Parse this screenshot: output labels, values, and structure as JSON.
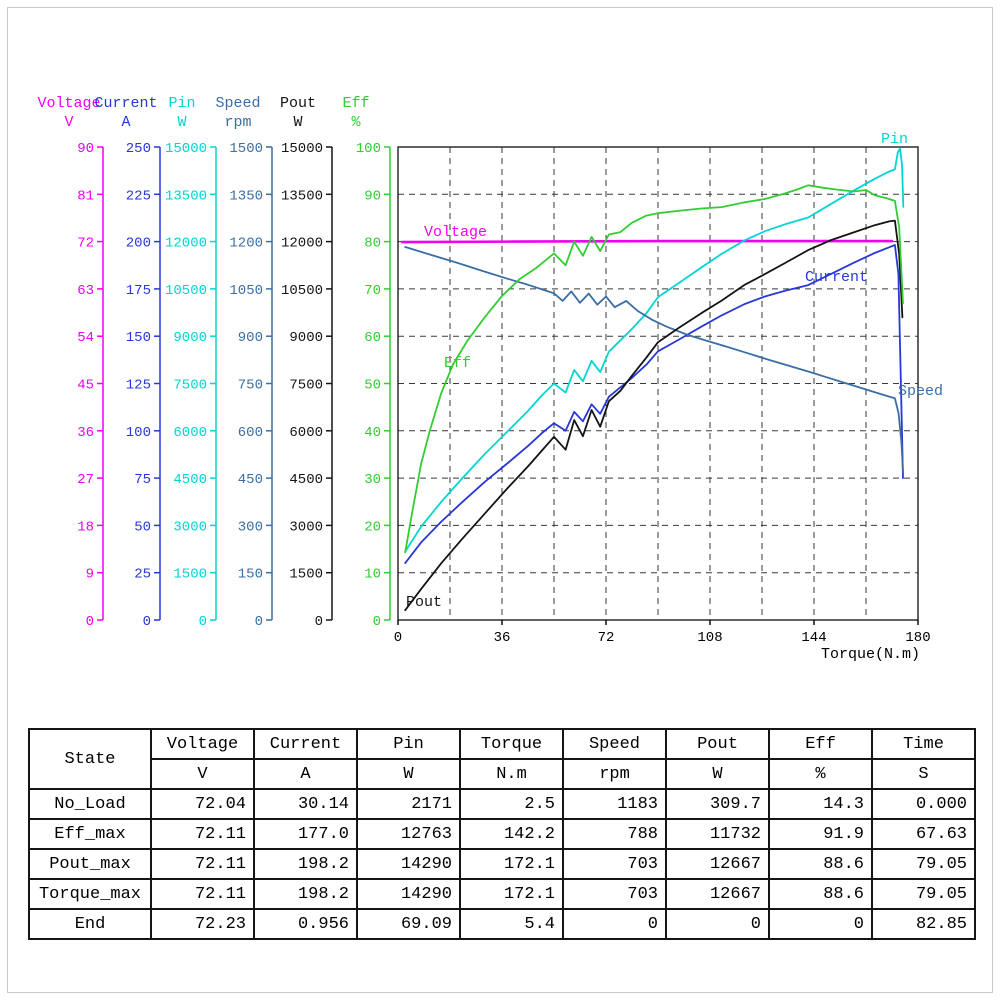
{
  "chart_data": {
    "type": "line",
    "x_axis": {
      "label": "Torque(N.m)",
      "min": 0,
      "max": 180,
      "divisions": 10,
      "ticks": [
        "0",
        "36",
        "72",
        "108",
        "144",
        "180"
      ]
    },
    "axes": [
      {
        "id": "voltage",
        "name": "Voltage",
        "unit": "V",
        "max": 90,
        "color": "#f000f0",
        "ticks": [
          "0",
          "9",
          "18",
          "27",
          "36",
          "45",
          "54",
          "63",
          "72",
          "81",
          "90"
        ]
      },
      {
        "id": "current",
        "name": "Current",
        "unit": "A",
        "max": 250,
        "color": "#2838d8",
        "ticks": [
          "0",
          "25",
          "50",
          "75",
          "100",
          "125",
          "150",
          "175",
          "200",
          "225",
          "250"
        ]
      },
      {
        "id": "pin",
        "name": "Pin",
        "unit": "W",
        "max": 15000,
        "color": "#00d5d5",
        "ticks": [
          "0",
          "1500",
          "3000",
          "4500",
          "6000",
          "7500",
          "9000",
          "10500",
          "12000",
          "13500",
          "15000"
        ]
      },
      {
        "id": "speed",
        "name": "Speed",
        "unit": "rpm",
        "max": 1500,
        "color": "#3b6ea5",
        "ticks": [
          "0",
          "150",
          "300",
          "450",
          "600",
          "750",
          "900",
          "1050",
          "1200",
          "1350",
          "1500"
        ]
      },
      {
        "id": "pout",
        "name": "Pout",
        "unit": "W",
        "max": 15000,
        "color": "#141414",
        "ticks": [
          "0",
          "1500",
          "3000",
          "4500",
          "6000",
          "7500",
          "9000",
          "10500",
          "12000",
          "13500",
          "15000"
        ]
      },
      {
        "id": "eff",
        "name": "Eff",
        "unit": "%",
        "max": 100,
        "color": "#33cc33",
        "ticks": [
          "0",
          "10",
          "20",
          "30",
          "40",
          "50",
          "60",
          "70",
          "80",
          "90",
          "100"
        ]
      }
    ],
    "series": [
      {
        "id": "voltage",
        "label": "Voltage",
        "axis": "voltage",
        "color": "#f000f0",
        "points": [
          [
            1.5,
            71.9
          ],
          [
            40,
            72.0
          ],
          [
            90,
            72.1
          ],
          [
            140,
            72.1
          ],
          [
            171,
            72.1
          ]
        ]
      },
      {
        "id": "pin",
        "label": "Pin",
        "axis": "pin",
        "color": "#00d5d5",
        "points": [
          [
            2.5,
            2171
          ],
          [
            8,
            2960
          ],
          [
            15,
            3750
          ],
          [
            22,
            4470
          ],
          [
            30,
            5260
          ],
          [
            38,
            5990
          ],
          [
            45,
            6630
          ],
          [
            50,
            7140
          ],
          [
            54,
            7500
          ],
          [
            58,
            7210
          ],
          [
            61,
            7930
          ],
          [
            64,
            7570
          ],
          [
            67,
            8220
          ],
          [
            70,
            7860
          ],
          [
            73,
            8510
          ],
          [
            77,
            8870
          ],
          [
            81,
            9230
          ],
          [
            86,
            9730
          ],
          [
            90,
            10240
          ],
          [
            97,
            10670
          ],
          [
            105,
            11180
          ],
          [
            112,
            11610
          ],
          [
            120,
            12040
          ],
          [
            127,
            12330
          ],
          [
            134,
            12550
          ],
          [
            142,
            12763
          ],
          [
            150,
            13200
          ],
          [
            158,
            13630
          ],
          [
            165,
            13990
          ],
          [
            170,
            14220
          ],
          [
            172,
            14290
          ],
          [
            173,
            14830
          ],
          [
            173.8,
            14950
          ],
          [
            174.5,
            14400
          ],
          [
            174.9,
            13100
          ]
        ]
      },
      {
        "id": "current",
        "label": "Current",
        "axis": "current",
        "color": "#2838d8",
        "points": [
          [
            2.5,
            30.1
          ],
          [
            8,
            41
          ],
          [
            15,
            52
          ],
          [
            22,
            62
          ],
          [
            30,
            73
          ],
          [
            38,
            83
          ],
          [
            45,
            92
          ],
          [
            50,
            99
          ],
          [
            54,
            104
          ],
          [
            58,
            100
          ],
          [
            61,
            110
          ],
          [
            64,
            105
          ],
          [
            67,
            114
          ],
          [
            70,
            109
          ],
          [
            73,
            118
          ],
          [
            77,
            123
          ],
          [
            81,
            128
          ],
          [
            86,
            135
          ],
          [
            90,
            142
          ],
          [
            97,
            148
          ],
          [
            105,
            155
          ],
          [
            112,
            161
          ],
          [
            120,
            167
          ],
          [
            127,
            171
          ],
          [
            134,
            174
          ],
          [
            142,
            177
          ],
          [
            150,
            183
          ],
          [
            158,
            189
          ],
          [
            165,
            194
          ],
          [
            170,
            197
          ],
          [
            172,
            198.2
          ],
          [
            173.2,
            183
          ],
          [
            174.2,
            118
          ],
          [
            174.8,
            75
          ]
        ]
      },
      {
        "id": "speed",
        "label": "Speed",
        "axis": "speed",
        "color": "#3b6ea5",
        "points": [
          [
            2.5,
            1183
          ],
          [
            10,
            1162
          ],
          [
            20,
            1134
          ],
          [
            30,
            1105
          ],
          [
            38,
            1082
          ],
          [
            45,
            1063
          ],
          [
            50,
            1048
          ],
          [
            54,
            1036
          ],
          [
            57,
            1012
          ],
          [
            60,
            1042
          ],
          [
            63,
            1006
          ],
          [
            66,
            1035
          ],
          [
            69,
            1000
          ],
          [
            72,
            1026
          ],
          [
            75,
            992
          ],
          [
            79,
            1012
          ],
          [
            83,
            980
          ],
          [
            88,
            952
          ],
          [
            93,
            930
          ],
          [
            100,
            905
          ],
          [
            107,
            885
          ],
          [
            114,
            866
          ],
          [
            121,
            846
          ],
          [
            128,
            826
          ],
          [
            135,
            807
          ],
          [
            142,
            788
          ],
          [
            149,
            768
          ],
          [
            156,
            748
          ],
          [
            163,
            728
          ],
          [
            168,
            714
          ],
          [
            172,
            703
          ],
          [
            173.3,
            655
          ],
          [
            174.3,
            560
          ],
          [
            174.8,
            470
          ]
        ]
      },
      {
        "id": "pout",
        "label": "Pout",
        "axis": "pout",
        "color": "#141414",
        "points": [
          [
            2.5,
            310
          ],
          [
            8,
            980
          ],
          [
            15,
            1800
          ],
          [
            22,
            2550
          ],
          [
            30,
            3370
          ],
          [
            38,
            4190
          ],
          [
            45,
            4870
          ],
          [
            50,
            5390
          ],
          [
            54,
            5810
          ],
          [
            58,
            5400
          ],
          [
            61,
            6340
          ],
          [
            64,
            5830
          ],
          [
            67,
            6660
          ],
          [
            70,
            6130
          ],
          [
            73,
            6940
          ],
          [
            77,
            7270
          ],
          [
            81,
            7750
          ],
          [
            86,
            8320
          ],
          [
            90,
            8810
          ],
          [
            97,
            9250
          ],
          [
            105,
            9730
          ],
          [
            112,
            10130
          ],
          [
            120,
            10630
          ],
          [
            127,
            10970
          ],
          [
            134,
            11320
          ],
          [
            142,
            11729
          ],
          [
            150,
            12050
          ],
          [
            158,
            12300
          ],
          [
            165,
            12520
          ],
          [
            170,
            12640
          ],
          [
            172,
            12667
          ],
          [
            173.5,
            11600
          ],
          [
            174.6,
            9600
          ]
        ]
      },
      {
        "id": "eff",
        "label": "Eff",
        "axis": "eff",
        "color": "#33cc33",
        "points": [
          [
            2.5,
            14.3
          ],
          [
            5,
            23
          ],
          [
            8,
            33
          ],
          [
            11,
            40
          ],
          [
            15,
            48
          ],
          [
            19,
            54
          ],
          [
            24,
            59
          ],
          [
            30,
            64
          ],
          [
            36,
            68.5
          ],
          [
            42,
            72
          ],
          [
            48,
            74.5
          ],
          [
            52,
            76.5
          ],
          [
            54,
            77.5
          ],
          [
            58,
            75
          ],
          [
            61,
            80
          ],
          [
            64,
            77
          ],
          [
            67,
            81
          ],
          [
            70,
            78
          ],
          [
            73,
            81.5
          ],
          [
            77,
            82
          ],
          [
            81,
            84
          ],
          [
            86,
            85.5
          ],
          [
            90,
            86
          ],
          [
            97,
            86.5
          ],
          [
            105,
            87
          ],
          [
            112,
            87.3
          ],
          [
            120,
            88.3
          ],
          [
            127,
            89
          ],
          [
            134,
            90.2
          ],
          [
            138,
            91
          ],
          [
            142,
            91.9
          ],
          [
            147,
            91.4
          ],
          [
            152,
            91
          ],
          [
            158,
            90.6
          ],
          [
            162,
            90.9
          ],
          [
            165,
            89.8
          ],
          [
            169,
            89.2
          ],
          [
            172,
            88.6
          ],
          [
            173.5,
            83
          ],
          [
            174.8,
            67
          ]
        ]
      }
    ]
  },
  "table": {
    "columns": [
      {
        "label": "State",
        "unit": ""
      },
      {
        "label": "Voltage",
        "unit": "V"
      },
      {
        "label": "Current",
        "unit": "A"
      },
      {
        "label": "Pin",
        "unit": "W"
      },
      {
        "label": "Torque",
        "unit": "N.m"
      },
      {
        "label": "Speed",
        "unit": "rpm"
      },
      {
        "label": "Pout",
        "unit": "W"
      },
      {
        "label": "Eff",
        "unit": "%"
      },
      {
        "label": "Time",
        "unit": "S"
      }
    ],
    "rows": [
      {
        "state": "No_Load",
        "values": [
          "72.04",
          "30.14",
          "2171",
          "2.5",
          "1183",
          "309.7",
          "14.3",
          "0.000"
        ]
      },
      {
        "state": "Eff_max",
        "values": [
          "72.11",
          "177.0",
          "12763",
          "142.2",
          "788",
          "11732",
          "91.9",
          "67.63"
        ]
      },
      {
        "state": "Pout_max",
        "values": [
          "72.11",
          "198.2",
          "14290",
          "172.1",
          "703",
          "12667",
          "88.6",
          "79.05"
        ]
      },
      {
        "state": "Torque_max",
        "values": [
          "72.11",
          "198.2",
          "14290",
          "172.1",
          "703",
          "12667",
          "88.6",
          "79.05"
        ]
      },
      {
        "state": "End",
        "values": [
          "72.23",
          "0.956",
          "69.09",
          "5.4",
          "0",
          "0",
          "0",
          "82.85"
        ]
      }
    ]
  }
}
